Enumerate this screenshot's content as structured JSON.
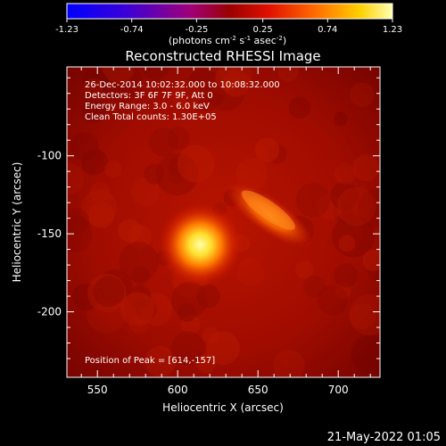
{
  "chart_data": {
    "type": "heatmap",
    "title": "Reconstructed RHESSI Image",
    "xlabel": "Heliocentric X (arcsec)",
    "ylabel": "Heliocentric Y (arcsec)",
    "xlim": [
      531,
      726
    ],
    "ylim": [
      -242,
      -43
    ],
    "x_ticks": [
      550,
      600,
      650,
      700
    ],
    "y_ticks": [
      -100,
      -150,
      -200
    ],
    "colorbar": {
      "colormap": "red-temperature",
      "range": [
        -1.23,
        1.23
      ],
      "ticks": [
        "-1.23",
        "-0.74",
        "-0.25",
        "0.25",
        "0.74",
        "1.23"
      ],
      "unit_text": "(photons cm",
      "unit_exp1": "-2",
      "unit_mid": " s",
      "unit_exp2": "-1",
      "unit_mid2": " asec",
      "unit_exp3": "-2",
      "unit_end": ")"
    },
    "annotations": [
      "26-Dec-2014 10:02:32.000 to 10:08:32.000",
      "Detectors: 3F 6F 7F 9F, Att 0",
      "Energy Range: 3.0 - 6.0 keV",
      "Clean    Total counts: 1.30E+05"
    ],
    "peak_label": "Position of Peak = [614,-157]",
    "sources": [
      {
        "x": 614,
        "y": -157,
        "peak": 1.23
      },
      {
        "x": 657,
        "y": -138,
        "peak": 0.8
      }
    ],
    "timestamp": "21-May-2022 01:05"
  }
}
